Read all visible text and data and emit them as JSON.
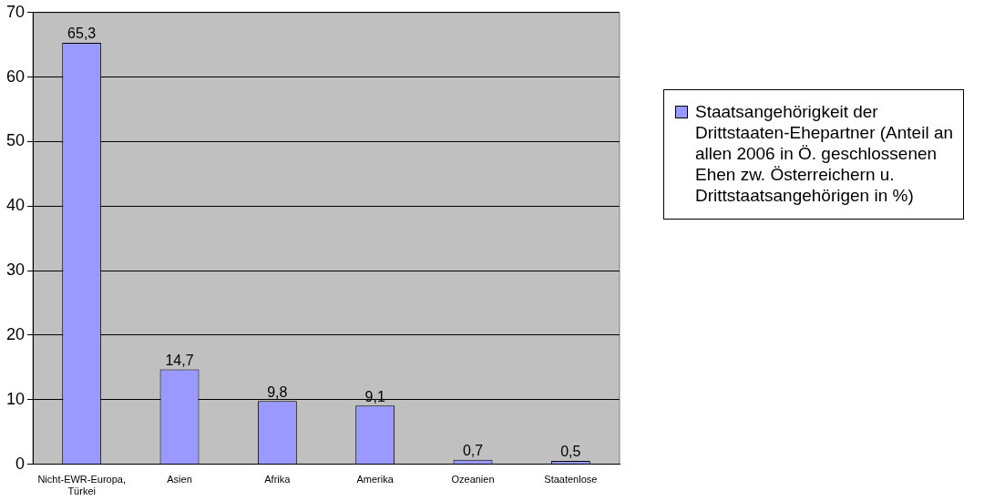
{
  "chart_data": {
    "type": "bar",
    "categories": [
      "Nicht-EWR-Europa, Türkei",
      "Asien",
      "Afrika",
      "Amerika",
      "Ozeanien",
      "Staatenlose"
    ],
    "series": [
      {
        "name": "Staatsangehörigkeit der Drittstaaten-Ehepartner (Anteil an allen 2006 in Ö. geschlossenen Ehen zw. Österreichern u. Drittstaatsangehörigen in %)",
        "color": "#9999ff",
        "values": [
          65.3,
          14.7,
          9.8,
          9.1,
          0.7,
          0.5
        ],
        "value_labels": [
          "65,3",
          "14,7",
          "9,8",
          "9,1",
          "0,7",
          "0,5"
        ]
      }
    ],
    "ylim": [
      0,
      70
    ],
    "yticks": [
      0,
      10,
      20,
      30,
      40,
      50,
      60,
      70
    ],
    "grid": "y",
    "legend": "right"
  }
}
